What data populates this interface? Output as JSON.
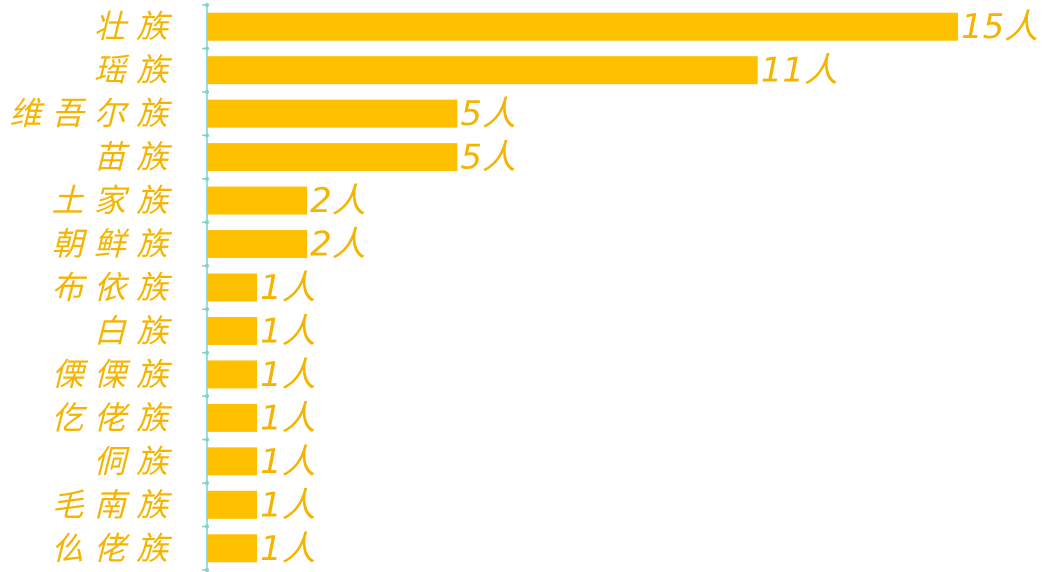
{
  "chart_data": {
    "type": "bar",
    "orientation": "horizontal",
    "color": "#ffc000",
    "categories": [
      "壮 族",
      "瑶 族",
      "维 吾 尔 族",
      "苗 族",
      "土 家 族",
      "朝 鲜 族",
      "布 依 族",
      "白 族",
      "傈 傈 族",
      "仡 佬 族",
      "侗 族",
      "毛 南 族",
      "仫 佬 族"
    ],
    "values": [
      15,
      11,
      5,
      5,
      2,
      2,
      1,
      1,
      1,
      1,
      1,
      1,
      1
    ],
    "value_labels": [
      "15人",
      "11人",
      "5人",
      "5人",
      "2人",
      "2人",
      "1人",
      "1人",
      "1人",
      "1人",
      "1人",
      "1人",
      "1人"
    ]
  }
}
